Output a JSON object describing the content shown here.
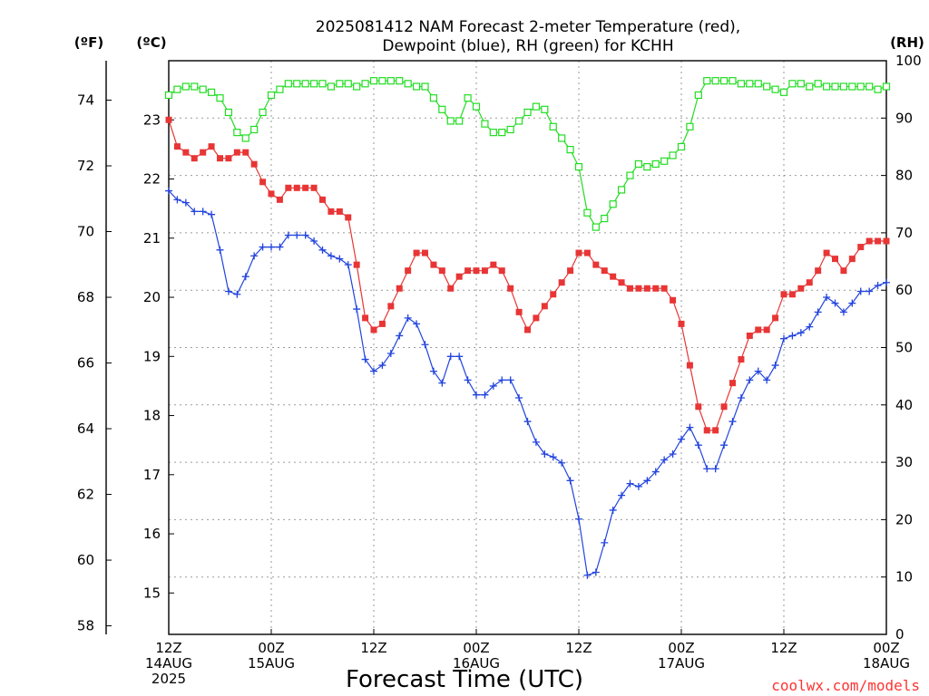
{
  "chart_title_line1": "2025081412 NAM Forecast 2-meter Temperature (red),",
  "chart_title_line2": "Dewpoint (blue), RH (green) for KCHH",
  "unit_f": "(ºF)",
  "unit_c": "(ºC)",
  "unit_rh": "(RH)",
  "xlabel": "Forecast Time (UTC)",
  "credit": "coolwx.com/models",
  "colors": {
    "temperature": "#e83535",
    "dewpoint": "#2244dd",
    "rh": "#22dd22"
  },
  "chart_data": {
    "type": "line",
    "title": "2025081412 NAM Forecast 2-meter Temperature (red), Dewpoint (blue), RH (green) for KCHH",
    "xlabel": "Forecast Time (UTC)",
    "x_unit": "forecast hour from 2025-08-14 12Z",
    "xlim": [
      0,
      84
    ],
    "x_ticks": [
      {
        "hour": 0,
        "lines": [
          "12Z",
          "14AUG",
          "2025"
        ]
      },
      {
        "hour": 12,
        "lines": [
          "00Z",
          "15AUG"
        ]
      },
      {
        "hour": 24,
        "lines": [
          "12Z"
        ]
      },
      {
        "hour": 36,
        "lines": [
          "00Z",
          "16AUG"
        ]
      },
      {
        "hour": 48,
        "lines": [
          "12Z"
        ]
      },
      {
        "hour": 60,
        "lines": [
          "00Z",
          "17AUG"
        ]
      },
      {
        "hour": 72,
        "lines": [
          "12Z"
        ]
      },
      {
        "hour": 84,
        "lines": [
          "00Z",
          "18AUG"
        ]
      }
    ],
    "y_celsius": {
      "lim": [
        14.3,
        24
      ],
      "ticks": [
        15,
        16,
        17,
        18,
        19,
        20,
        21,
        22,
        23
      ]
    },
    "y_fahrenheit": {
      "lim": [
        57.74,
        75.2
      ],
      "ticks": [
        58,
        60,
        62,
        64,
        66,
        68,
        70,
        72,
        74
      ]
    },
    "y_rh": {
      "lim": [
        0,
        100
      ],
      "ticks": [
        0,
        10,
        20,
        30,
        40,
        50,
        60,
        70,
        80,
        90,
        100
      ]
    },
    "grid": true,
    "series": [
      {
        "name": "Temperature",
        "unit": "°C",
        "marker": "filled-square",
        "values": [
          23.0,
          22.55,
          22.45,
          22.35,
          22.45,
          22.55,
          22.35,
          22.35,
          22.45,
          22.45,
          22.25,
          21.95,
          21.75,
          21.65,
          21.85,
          21.85,
          21.85,
          21.85,
          21.65,
          21.45,
          21.45,
          21.35,
          20.55,
          19.65,
          19.45,
          19.55,
          19.85,
          20.15,
          20.45,
          20.75,
          20.75,
          20.55,
          20.45,
          20.15,
          20.35,
          20.45,
          20.45,
          20.45,
          20.55,
          20.45,
          20.15,
          19.75,
          19.45,
          19.65,
          19.85,
          20.05,
          20.25,
          20.45,
          20.75,
          20.75,
          20.55,
          20.45,
          20.35,
          20.25,
          20.15,
          20.15,
          20.15,
          20.15,
          20.15,
          19.95,
          19.55,
          18.85,
          18.15,
          17.75,
          17.75,
          18.15,
          18.55,
          18.95,
          19.35,
          19.45,
          19.45,
          19.65,
          20.05,
          20.05,
          20.15,
          20.25,
          20.45,
          20.75,
          20.65,
          20.45,
          20.65,
          20.85,
          20.95,
          20.95,
          20.95
        ]
      },
      {
        "name": "Dewpoint",
        "unit": "°C",
        "marker": "plus",
        "values": [
          21.8,
          21.65,
          21.6,
          21.45,
          21.45,
          21.4,
          20.8,
          20.1,
          20.05,
          20.35,
          20.7,
          20.85,
          20.85,
          20.85,
          21.05,
          21.05,
          21.05,
          20.95,
          20.8,
          20.7,
          20.65,
          20.55,
          19.8,
          18.95,
          18.75,
          18.85,
          19.05,
          19.35,
          19.65,
          19.55,
          19.2,
          18.75,
          18.55,
          19.0,
          19.0,
          18.6,
          18.35,
          18.35,
          18.5,
          18.6,
          18.6,
          18.3,
          17.9,
          17.55,
          17.35,
          17.3,
          17.2,
          16.9,
          16.25,
          15.3,
          15.35,
          15.85,
          16.4,
          16.65,
          16.85,
          16.8,
          16.9,
          17.05,
          17.25,
          17.35,
          17.6,
          17.8,
          17.5,
          17.1,
          17.1,
          17.5,
          17.9,
          18.3,
          18.6,
          18.75,
          18.6,
          18.85,
          19.3,
          19.35,
          19.4,
          19.5,
          19.75,
          20.0,
          19.9,
          19.75,
          19.9,
          20.1,
          20.1,
          20.2,
          20.25
        ]
      },
      {
        "name": "RH",
        "unit": "%",
        "marker": "open-square",
        "values": [
          94,
          95,
          95.5,
          95.5,
          95,
          94.5,
          93.5,
          91,
          87.5,
          86.5,
          88,
          91,
          94,
          95,
          96,
          96,
          96,
          96,
          96,
          95.5,
          96,
          96,
          95.5,
          96,
          96.5,
          96.5,
          96.5,
          96.5,
          96,
          95.5,
          95.5,
          93.5,
          91.5,
          89.5,
          89.5,
          93.5,
          92,
          89,
          87.5,
          87.5,
          88,
          89.5,
          91,
          92,
          91.5,
          88.5,
          86.5,
          84.5,
          81.5,
          73.5,
          71,
          72.5,
          75,
          77.5,
          80,
          82,
          81.5,
          82,
          82.5,
          83.5,
          85,
          88.5,
          94,
          96.5,
          96.5,
          96.5,
          96.5,
          96,
          96,
          96,
          95.5,
          95,
          94.5,
          96,
          96,
          95.5,
          96,
          95.5,
          95.5,
          95.5,
          95.5,
          95.5,
          95.5,
          95,
          95.5
        ]
      }
    ]
  }
}
